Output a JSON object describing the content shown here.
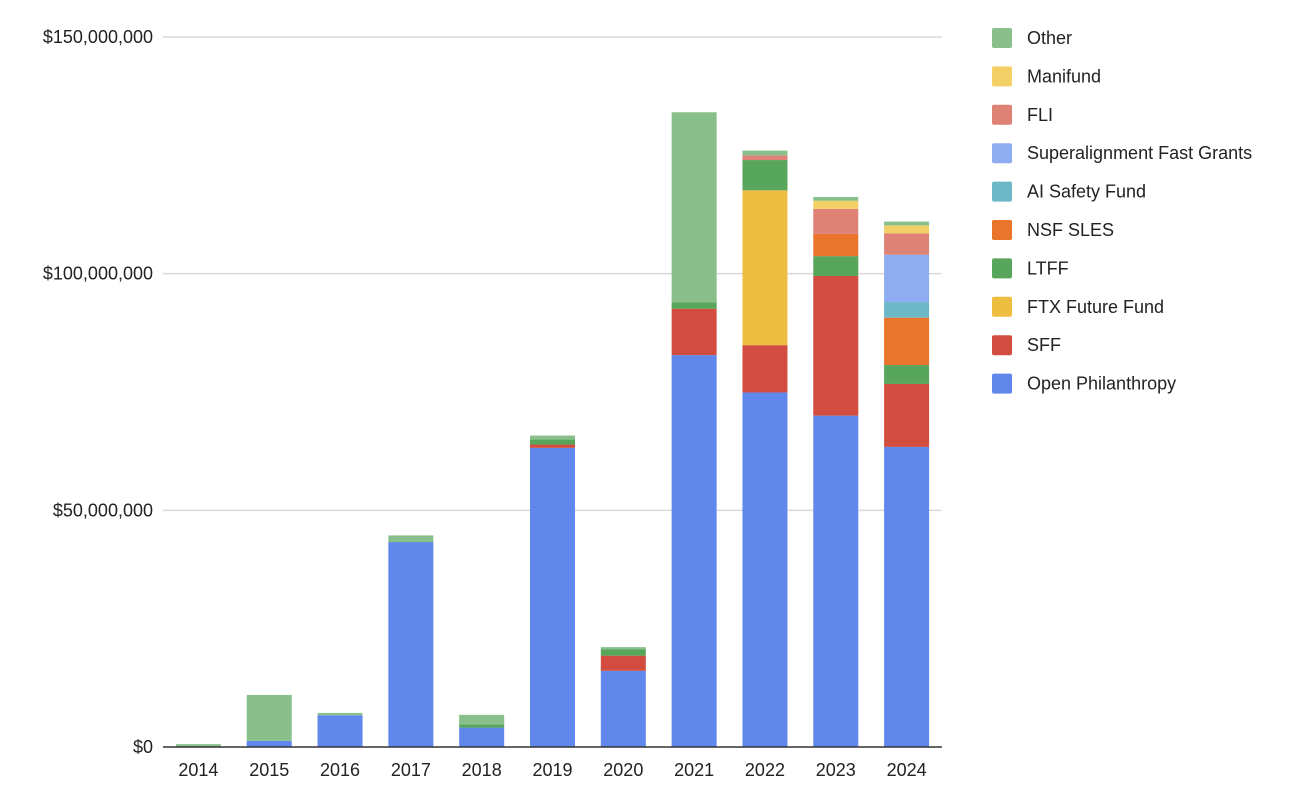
{
  "chart_data": {
    "type": "bar",
    "stacked": true,
    "title": "",
    "xlabel": "",
    "ylabel": "",
    "ylim": [
      0,
      150000000
    ],
    "y_ticks": [
      0,
      50000000,
      100000000,
      150000000
    ],
    "y_tick_labels": [
      "$0",
      "$50,000,000",
      "$100,000,000",
      "$150,000,000"
    ],
    "grid": true,
    "legend_position": "right",
    "categories": [
      "2014",
      "2015",
      "2016",
      "2017",
      "2018",
      "2019",
      "2020",
      "2021",
      "2022",
      "2023",
      "2024"
    ],
    "series": [
      {
        "name": "Open Philanthropy",
        "color": "#6087EC",
        "values": [
          0,
          1300000,
          6700000,
          43300000,
          4100000,
          63200000,
          16100000,
          82800000,
          74900000,
          70000000,
          63400000
        ]
      },
      {
        "name": "SFF",
        "color": "#D24D3F",
        "values": [
          0,
          0,
          0,
          0,
          0,
          700000,
          3200000,
          9800000,
          10000000,
          29500000,
          13300000
        ]
      },
      {
        "name": "FTX Future Fund",
        "color": "#EEBE40",
        "values": [
          0,
          0,
          0,
          0,
          0,
          0,
          0,
          0,
          32700000,
          0,
          0
        ]
      },
      {
        "name": "LTFF",
        "color": "#58A55C",
        "values": [
          0,
          0,
          0,
          0,
          700000,
          1100000,
          1300000,
          1300000,
          6400000,
          4200000,
          4000000
        ]
      },
      {
        "name": "NSF SLES",
        "color": "#E9752D",
        "values": [
          0,
          0,
          0,
          0,
          0,
          0,
          0,
          0,
          0,
          4700000,
          10000000
        ]
      },
      {
        "name": "AI Safety Fund",
        "color": "#6CB8C6",
        "values": [
          0,
          0,
          0,
          0,
          0,
          0,
          0,
          0,
          0,
          0,
          3300000
        ]
      },
      {
        "name": "Superalignment Fast Grants",
        "color": "#8EACF2",
        "values": [
          0,
          0,
          0,
          0,
          0,
          0,
          0,
          0,
          0,
          0,
          10000000
        ]
      },
      {
        "name": "FLI",
        "color": "#DE8275",
        "values": [
          0,
          0,
          0,
          0,
          0,
          0,
          0,
          0,
          1000000,
          5300000,
          4500000
        ]
      },
      {
        "name": "Manifund",
        "color": "#F2D066",
        "values": [
          0,
          0,
          0,
          0,
          0,
          0,
          0,
          0,
          0,
          1700000,
          1700000
        ]
      },
      {
        "name": "Other",
        "color": "#89BF8B",
        "values": [
          600000,
          9700000,
          500000,
          1400000,
          2000000,
          800000,
          500000,
          40200000,
          1000000,
          800000,
          800000
        ]
      }
    ]
  }
}
